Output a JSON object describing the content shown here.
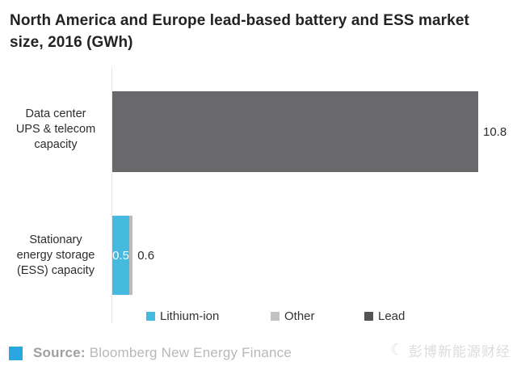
{
  "title": "North America and Europe lead-based battery and ESS market size, 2016 (GWh)",
  "chart_data": {
    "type": "bar",
    "orientation": "horizontal",
    "stacked": true,
    "title": "North America and Europe lead-based battery and ESS market size, 2016 (GWh)",
    "categories": [
      "Data center UPS & telecom capacity",
      "Stationary energy storage (ESS) capacity"
    ],
    "category_display": [
      "Data center\nUPS & telecom\ncapacity",
      "Stationary\nenergy storage\n(ESS) capacity"
    ],
    "series": [
      {
        "name": "Lithium-ion",
        "color": "#45b9de",
        "values": [
          0,
          0.5
        ]
      },
      {
        "name": "Other",
        "color": "#bbbbbb",
        "values": [
          0,
          0.1
        ]
      },
      {
        "name": "Lead",
        "color": "#69696b",
        "values": [
          10.8,
          0
        ]
      }
    ],
    "data_labels": {
      "datacenter_total": "10.8",
      "ess_lithium_inside": "0.5",
      "ess_total": "0.6"
    },
    "xlim": [
      0,
      11.9
    ],
    "grid": false,
    "legend_position": "bottom",
    "legend_swatch_colors": {
      "lithium": "#45b9de",
      "other": "#c2c2c2",
      "lead": "#545456"
    }
  },
  "footer": {
    "source_label": "Source:",
    "source_text": "Bloomberg New Energy Finance",
    "accent_color": "#29a8df",
    "watermark_icon": "☾",
    "watermark_text": "彭博新能源财经"
  }
}
